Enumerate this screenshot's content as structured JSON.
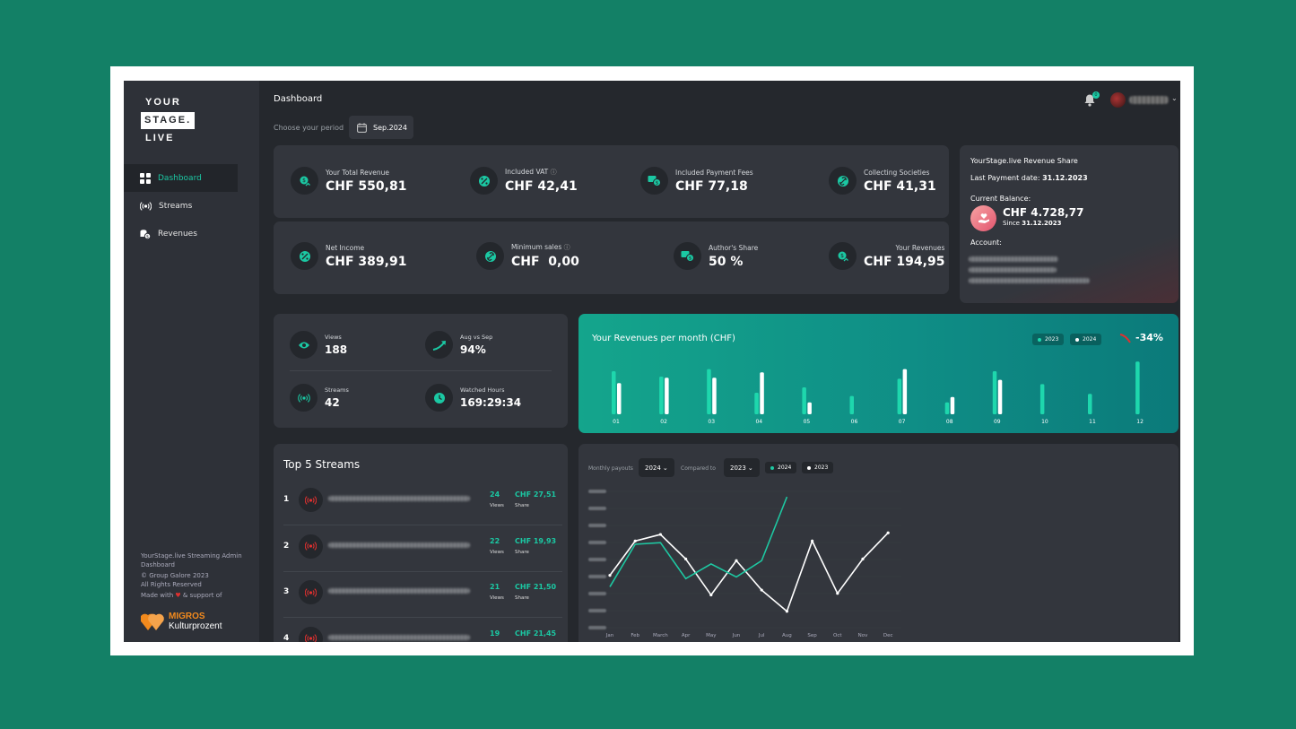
{
  "brand": {
    "line1": "YOUR",
    "line2": "STAGE.",
    "line3": "LIVE"
  },
  "sidebar": {
    "items": [
      {
        "label": "Dashboard",
        "icon": "grid-icon",
        "active": true
      },
      {
        "label": "Streams",
        "icon": "broadcast-icon"
      },
      {
        "label": "Revenues",
        "icon": "coins-icon"
      }
    ],
    "footer": {
      "line1": "YourStage.live Streaming Admin Dashboard",
      "line2": "© Group Galore 2023",
      "line3": "All Rights Reserved",
      "made_with_prefix": "Made with",
      "made_with_suffix": "& support of"
    },
    "sponsor": {
      "name1": "MIGROS",
      "name2": "Kulturprozent"
    }
  },
  "header": {
    "title": "Dashboard",
    "period_label": "Choose your period",
    "period_value": "Sep.2024",
    "notifications_count": "0"
  },
  "stats_top": [
    {
      "label": "Your Total Revenue",
      "value": "CHF 550,81",
      "icon": "revenue-icon"
    },
    {
      "label": "Included VAT",
      "value": "CHF 42,41",
      "icon": "percent-icon",
      "info": true
    },
    {
      "label": "Included Payment Fees",
      "value": "CHF 77,18",
      "icon": "money-icon"
    },
    {
      "label": "Collecting Societies",
      "value": "CHF 41,31",
      "icon": "society-icon"
    }
  ],
  "stats_bottom": [
    {
      "label": "Net Income",
      "value": "CHF 389,91",
      "icon": "percent-icon"
    },
    {
      "label": "Minimum sales",
      "value": "CHF  0,00",
      "icon": "society-icon",
      "info": true
    },
    {
      "label": "Author's Share",
      "value": "50 %",
      "icon": "money-icon"
    },
    {
      "label": "Your Revenues",
      "value": "CHF 194,95",
      "icon": "revenue-icon"
    }
  ],
  "revenue_share": {
    "title": "YourStage.live Revenue Share",
    "last_payment_label": "Last Payment date:",
    "last_payment_date": "31.12.2023",
    "balance_label": "Current Balance:",
    "balance": "CHF 4.728,77",
    "since_label": "Since",
    "since_date": "31.12.2023",
    "account_label": "Account:"
  },
  "kpis": [
    {
      "label": "Views",
      "value": "188",
      "icon": "eye-icon"
    },
    {
      "label": "Aug vs Sep",
      "value": "94%",
      "icon": "trend-up-icon"
    },
    {
      "label": "Streams",
      "value": "42",
      "icon": "broadcast-icon"
    },
    {
      "label": "Watched Hours",
      "value": "169:29:34",
      "icon": "clock-icon"
    }
  ],
  "revenue_chart": {
    "title": "Your Revenues per month (CHF)",
    "legend": [
      "2023",
      "2024"
    ],
    "trend": "-34%"
  },
  "top_streams": {
    "title": "Top 5 Streams",
    "views_label": "Views",
    "share_label": "Share",
    "rows": [
      {
        "rank": "1",
        "views": "24",
        "share": "CHF 27,51"
      },
      {
        "rank": "2",
        "views": "22",
        "share": "CHF 19,93"
      },
      {
        "rank": "3",
        "views": "21",
        "share": "CHF 21,50"
      },
      {
        "rank": "4",
        "views": "19",
        "share": "CHF 21,45"
      }
    ]
  },
  "payouts": {
    "label": "Monthly payouts",
    "year": "2024",
    "compare_label": "Compared to",
    "compare_year": "2023",
    "legend": [
      "2024",
      "2023"
    ]
  },
  "chart_data": [
    {
      "type": "bar",
      "title": "Your Revenues per month (CHF)",
      "categories": [
        "01",
        "02",
        "03",
        "04",
        "05",
        "06",
        "07",
        "08",
        "09",
        "10",
        "11",
        "12"
      ],
      "series": [
        {
          "name": "2023",
          "values": [
            40,
            35,
            42,
            20,
            25,
            17,
            33,
            11,
            40,
            28,
            19,
            49
          ]
        },
        {
          "name": "2024",
          "values": [
            29,
            34,
            34,
            39,
            11,
            null,
            42,
            16,
            32,
            null,
            null,
            null
          ]
        }
      ],
      "ylim": [
        0,
        50
      ],
      "colors": {
        "2023": "#1ed7ad",
        "2024": "#ffffff"
      }
    },
    {
      "type": "line",
      "title": "",
      "categories": [
        "Jan",
        "Feb",
        "March",
        "Apr",
        "May",
        "Jun",
        "Jul",
        "Aug",
        "Sep",
        "Oct",
        "Nov",
        "Dec"
      ],
      "series": [
        {
          "name": "2024",
          "values": [
            10,
            36,
            37,
            15,
            24,
            16,
            26,
            65,
            null,
            null,
            null,
            null
          ]
        },
        {
          "name": "2023",
          "values": [
            17,
            38,
            42,
            27,
            5,
            26,
            8,
            -5,
            38,
            6,
            27,
            43
          ]
        }
      ],
      "ylim": [
        -15,
        70
      ],
      "colors": {
        "2024": "#1ec8a2",
        "2023": "#ffffff"
      }
    }
  ]
}
